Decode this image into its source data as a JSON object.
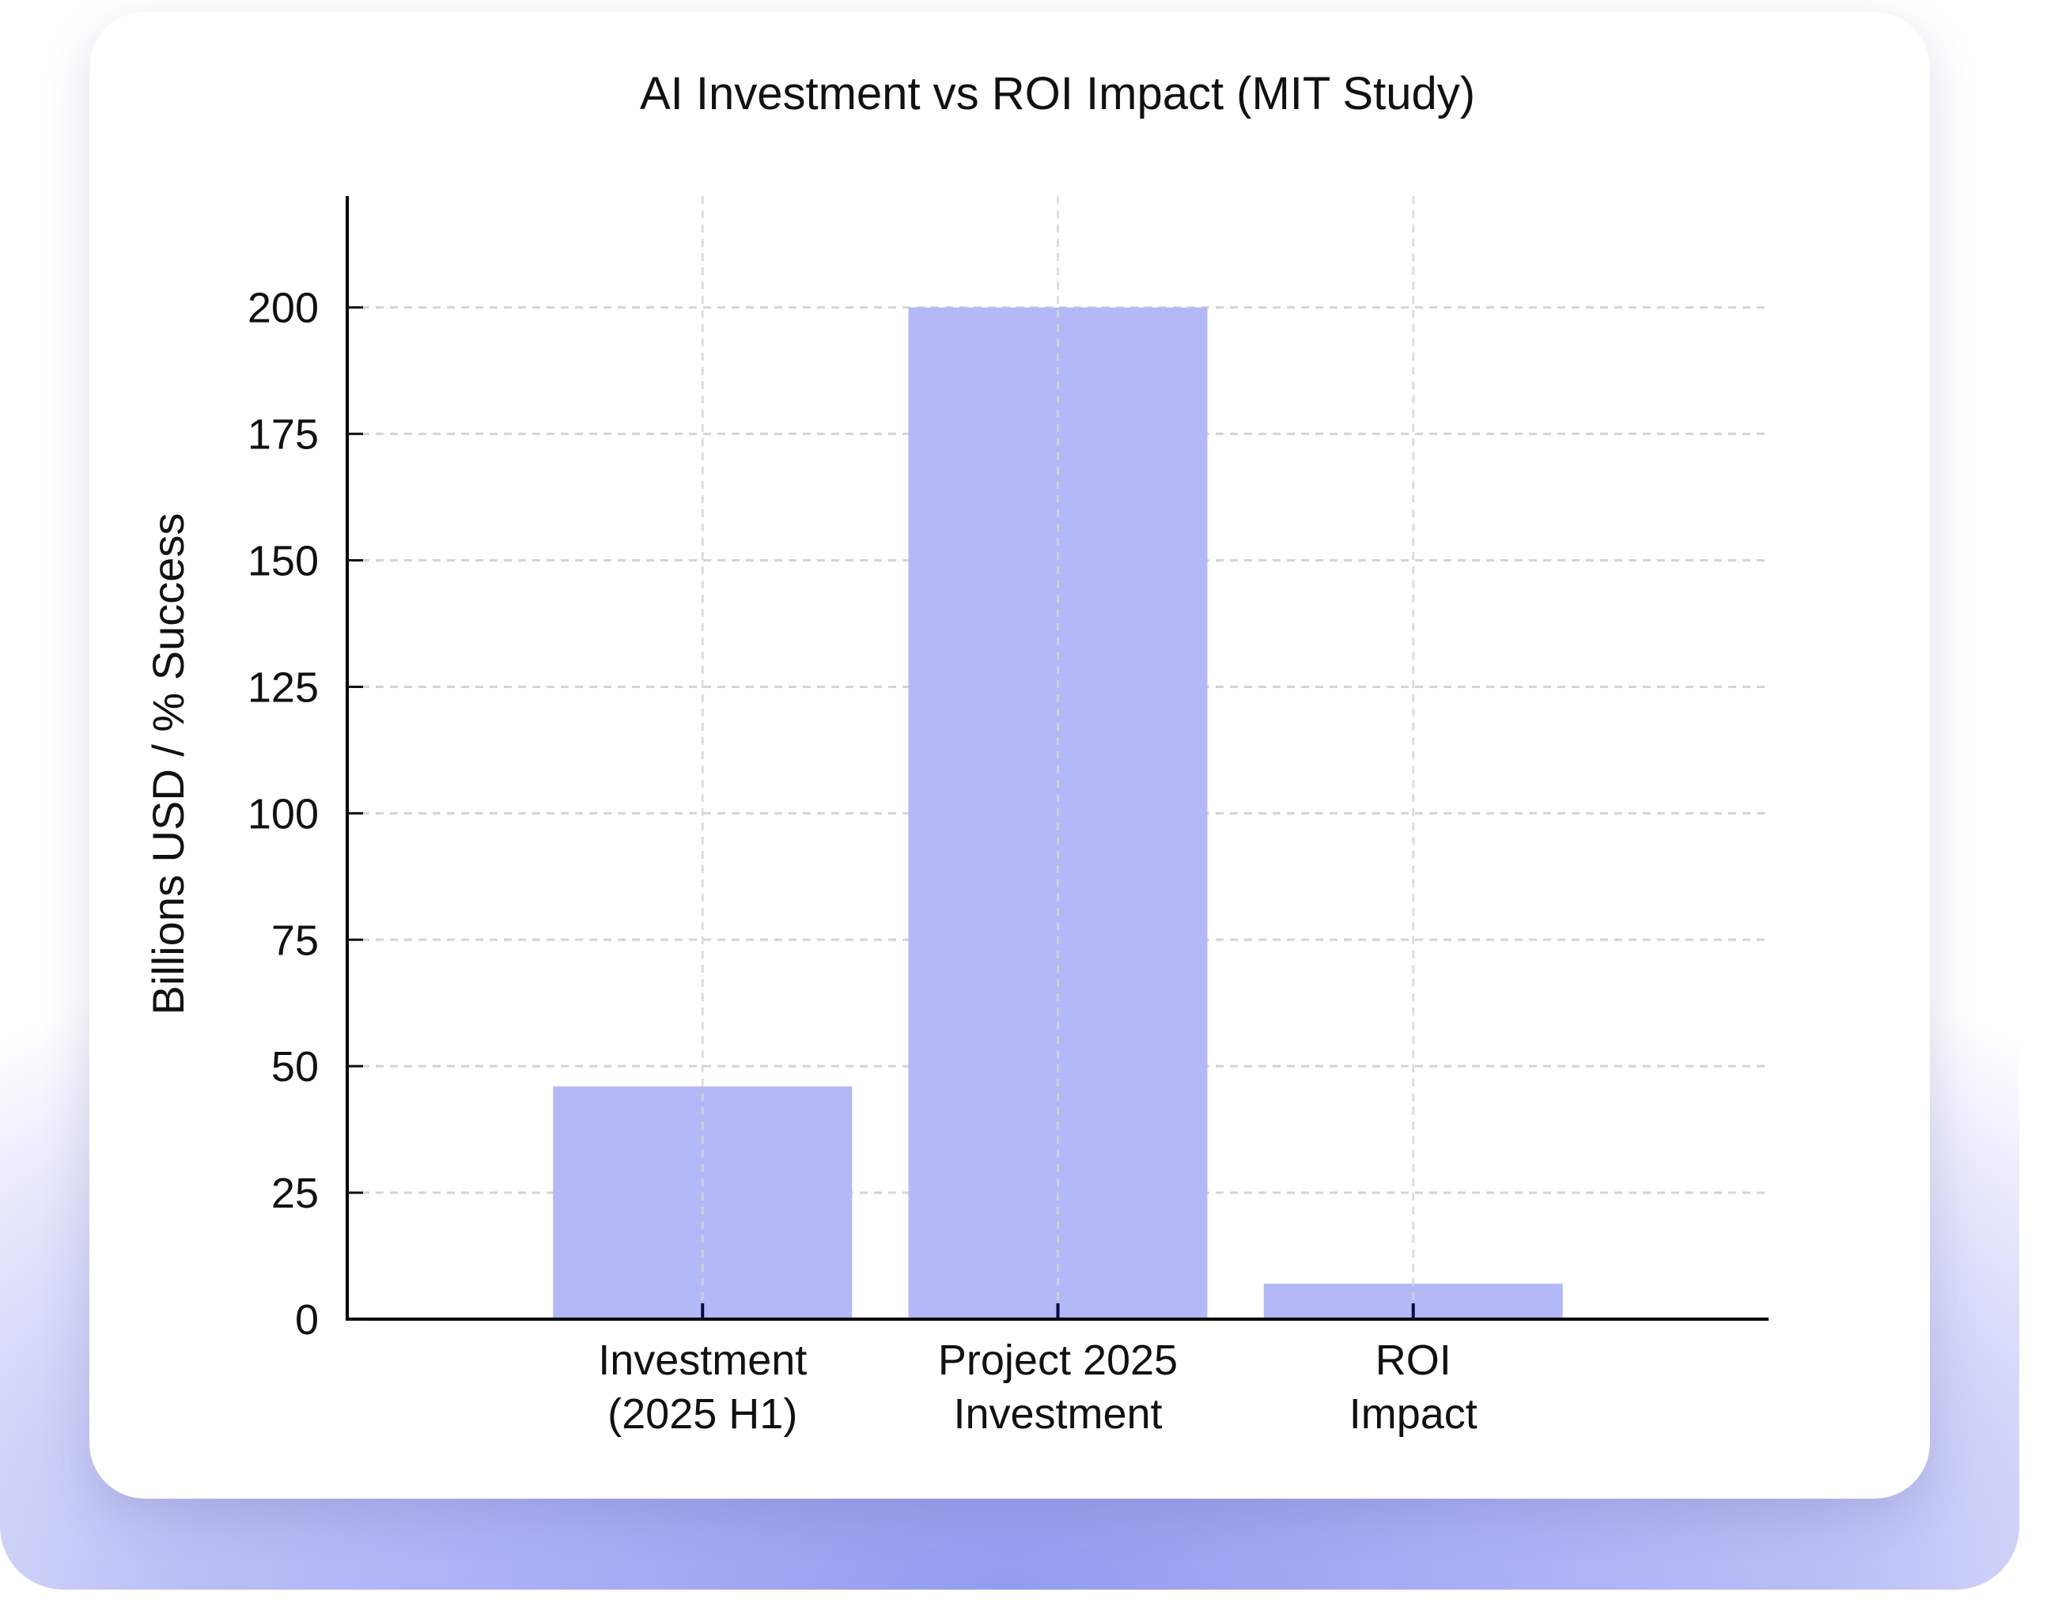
{
  "chart_data": {
    "type": "bar",
    "title": "AI Investment vs ROI Impact (MIT Study)",
    "xlabel": "",
    "ylabel": "Billions USD / % Success",
    "categories": [
      [
        "Investment",
        "(2025 H1)"
      ],
      [
        "Project 2025",
        "Investment"
      ],
      [
        "ROI",
        "Impact"
      ]
    ],
    "values": [
      46,
      200,
      7
    ],
    "ylim": [
      0,
      222
    ],
    "yticks": [
      0,
      25,
      50,
      75,
      100,
      125,
      150,
      175,
      200
    ],
    "grid": true,
    "bar_color": "#b3b8f6",
    "grid_color": "#d4d4d4"
  }
}
